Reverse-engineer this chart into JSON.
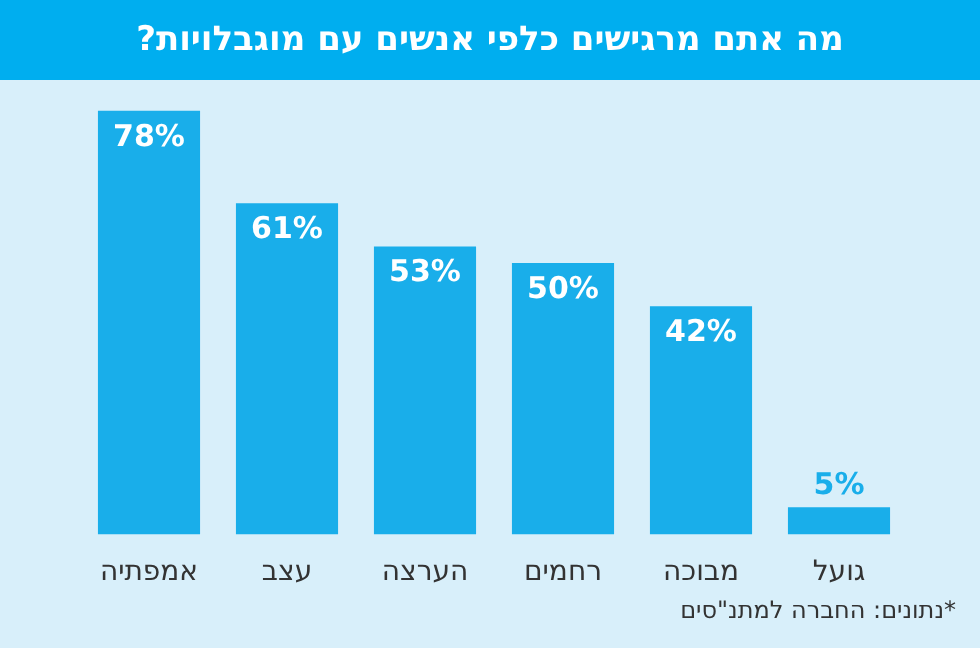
{
  "chart_data": {
    "type": "bar",
    "title": "מה אתם מרגישים כלפי אנשים עם מוגבלויות?",
    "categories": [
      "אמפתיה",
      "עצב",
      "הערצה",
      "רחמים",
      "מבוכה",
      "גועל"
    ],
    "values": [
      78,
      61,
      53,
      50,
      42,
      5
    ],
    "value_labels": [
      "78%",
      "61%",
      "53%",
      "50%",
      "42%",
      "5%"
    ],
    "color": "#19aeea",
    "annotations": [
      "*נתונים: החברה למתנ\"סים"
    ]
  }
}
